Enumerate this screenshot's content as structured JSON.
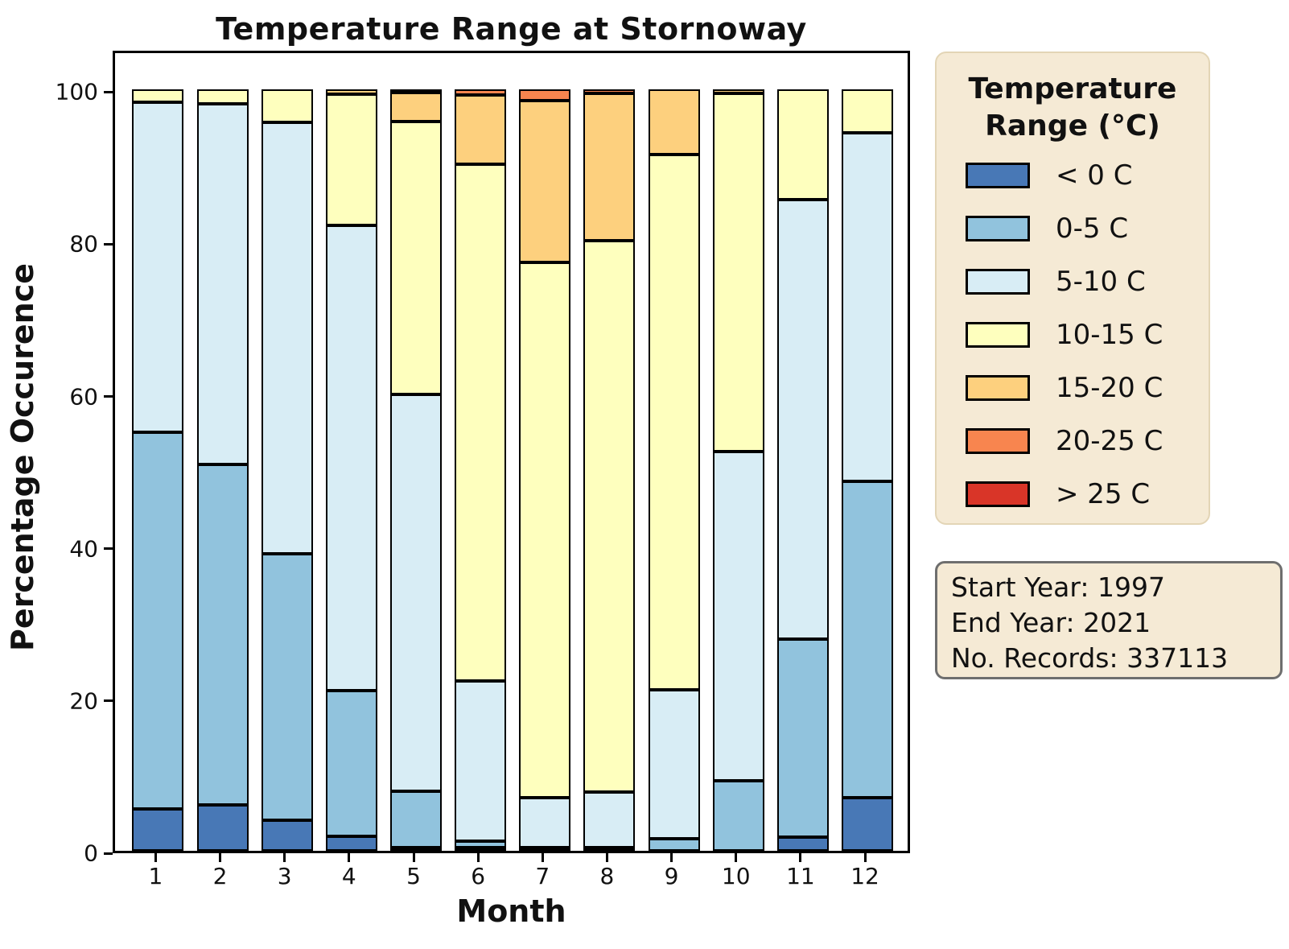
{
  "title": "Temperature Range at Stornoway",
  "axes": {
    "xlabel": "Month",
    "ylabel": "Percentage Occurence",
    "yticks": [
      0,
      20,
      40,
      60,
      80,
      100
    ],
    "ylim": [
      0,
      100
    ]
  },
  "legend": {
    "title_line1": "Temperature",
    "title_line2": "Range (°C)",
    "position": "right"
  },
  "info_box": {
    "lines": [
      "Start Year: 1997",
      "End Year: 2021",
      "No. Records: 337113"
    ]
  },
  "chart_data": {
    "type": "bar",
    "stacked": true,
    "title": "Temperature Range at Stornoway",
    "xlabel": "Month",
    "ylabel": "Percentage Occurence",
    "ylim": [
      0,
      100
    ],
    "grid": false,
    "legend_position": "right",
    "categories": [
      "1",
      "2",
      "3",
      "4",
      "5",
      "6",
      "7",
      "8",
      "9",
      "10",
      "11",
      "12"
    ],
    "series": [
      {
        "name": "< 0 C",
        "color": "#4878b6",
        "values": [
          5.5,
          6.0,
          4.0,
          1.9,
          0.2,
          0.1,
          0,
          0,
          0,
          0,
          1.8,
          7.0
        ]
      },
      {
        "name": "0-5 C",
        "color": "#91c3dd",
        "values": [
          49.5,
          44.8,
          35.0,
          19.1,
          7.4,
          0.9,
          0.3,
          0.4,
          1.6,
          9.2,
          26.0,
          41.5
        ]
      },
      {
        "name": "5-10 C",
        "color": "#d8edf5",
        "values": [
          43.3,
          47.3,
          56.7,
          61.2,
          52.4,
          21.1,
          6.6,
          7.3,
          19.6,
          43.3,
          57.7,
          45.8
        ]
      },
      {
        "name": "10-15 C",
        "color": "#feffbe",
        "values": [
          1.7,
          1.9,
          4.3,
          17.2,
          36.0,
          68.1,
          70.4,
          72.4,
          70.3,
          47.0,
          14.5,
          5.7
        ]
      },
      {
        "name": "15-20 C",
        "color": "#fdd07e",
        "values": [
          0,
          0,
          0,
          0.6,
          3.8,
          9.1,
          21.3,
          19.4,
          8.5,
          0.5,
          0,
          0
        ]
      },
      {
        "name": "20-25 C",
        "color": "#f8854f",
        "values": [
          0,
          0,
          0,
          0,
          0.2,
          0.7,
          1.4,
          0.5,
          0,
          0,
          0,
          0
        ]
      },
      {
        "name": "> 25 C",
        "color": "#d93528",
        "values": [
          0,
          0,
          0,
          0,
          0,
          0,
          0,
          0,
          0,
          0,
          0,
          0
        ]
      }
    ]
  }
}
